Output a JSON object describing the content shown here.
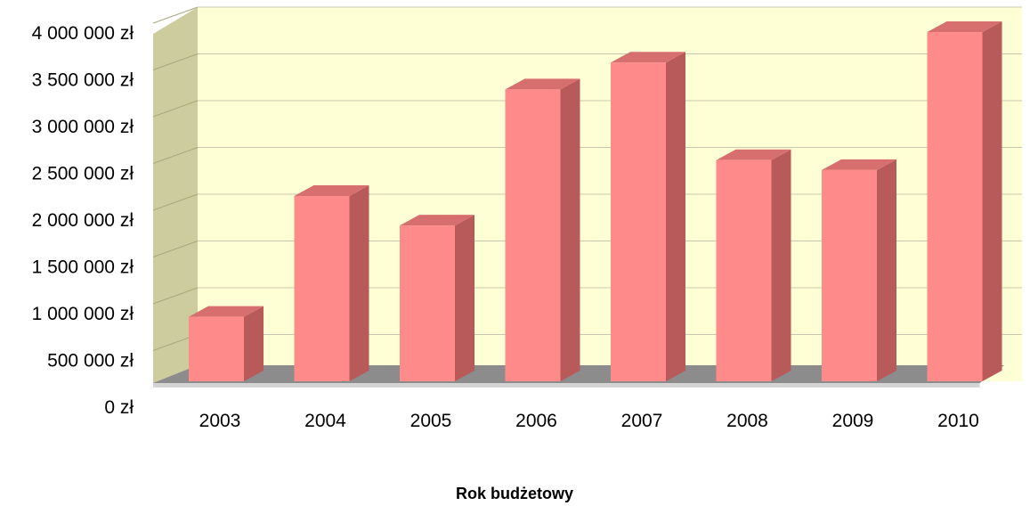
{
  "chart_data": {
    "type": "bar",
    "title": "",
    "xlabel": "Rok budżetowy",
    "ylabel": "",
    "categories": [
      "2003",
      "2004",
      "2005",
      "2006",
      "2007",
      "2008",
      "2009",
      "2010"
    ],
    "values": [
      720000,
      2070000,
      1740000,
      3260000,
      3560000,
      2470000,
      2360000,
      3900000
    ],
    "ylim": [
      0,
      4000000
    ],
    "yticks": [
      0,
      500000,
      1000000,
      1500000,
      2000000,
      2500000,
      3000000,
      3500000,
      4000000
    ],
    "ytick_labels": [
      "0 zł",
      "500 000 zł",
      "1 000 000 zł",
      "1 500 000 zł",
      "2 000 000 zł",
      "2 500 000 zł",
      "3 000 000 zł",
      "3 500 000 zł",
      "4 000 000 zł"
    ],
    "grid": true,
    "legend": "none",
    "colors": {
      "bar_front": "#ff8a8a",
      "bar_side": "#b85a5a",
      "bar_top": "#d86f6f",
      "back_wall": "#ffffd6",
      "side_wall": "#cccc9e",
      "floor": "#8c8c8c",
      "gridline": "#c8c8b0"
    }
  }
}
